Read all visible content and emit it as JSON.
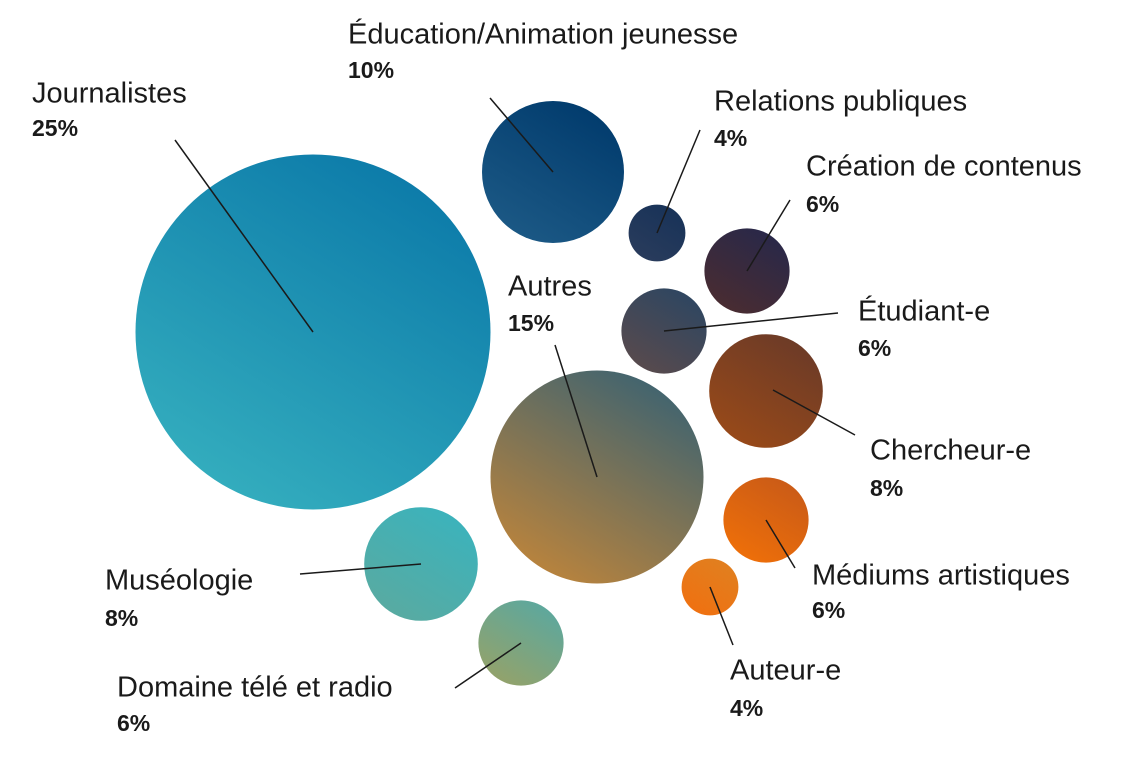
{
  "chart_data": {
    "type": "bubble",
    "categories": [
      "Journalistes",
      "Éducation/Animation jeunesse",
      "Relations publiques",
      "Création de contenus",
      "Étudiant-e",
      "Autres",
      "Chercheur-e",
      "Muséologie",
      "Médiums artistiques",
      "Auteur-e",
      "Domaine télé et radio"
    ],
    "values": [
      25,
      10,
      4,
      6,
      6,
      15,
      8,
      8,
      6,
      4,
      6
    ],
    "value_labels": [
      "25%",
      "10%",
      "4%",
      "6%",
      "6%",
      "15%",
      "8%",
      "8%",
      "6%",
      "4%",
      "6%"
    ],
    "colors": [
      [
        "#0a78a8",
        "#36b0bf"
      ],
      [
        "#003a6c",
        "#1d5a86"
      ],
      [
        "#173258",
        "#2a3c5c"
      ],
      [
        "#27284a",
        "#4b2c30"
      ],
      [
        "#2c4662",
        "#5a4a4c"
      ],
      [
        "#3a6272",
        "#c0853a"
      ],
      [
        "#6a3a28",
        "#9a4a18"
      ],
      [
        "#3ab3bd",
        "#5aaaa0"
      ],
      [
        "#c85a18",
        "#f07008"
      ],
      [
        "#e08020",
        "#f07010"
      ],
      [
        "#5aa8a0",
        "#96a268"
      ]
    ]
  }
}
